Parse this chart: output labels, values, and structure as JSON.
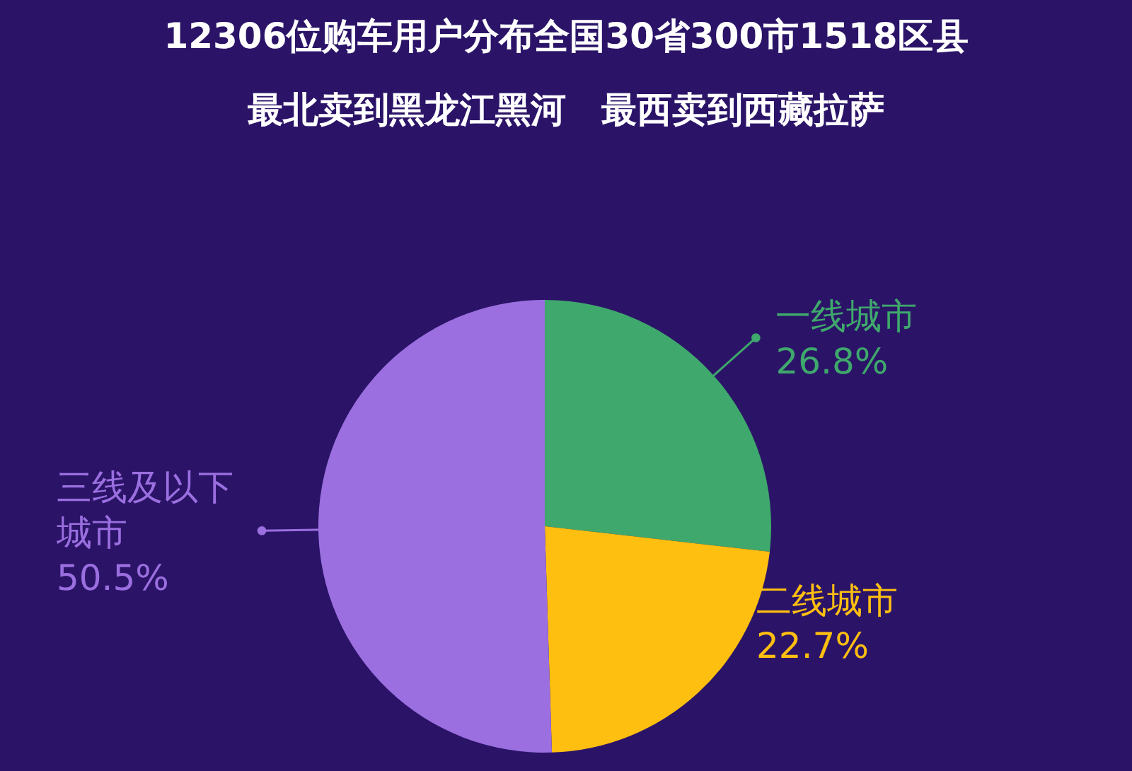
{
  "chart_data": {
    "type": "pie",
    "title": "12306位购车用户分布全国30省300市1518区县",
    "subtitle": "最北卖到黑龙江黑河　最西卖到西藏拉萨",
    "categories": [
      "一线城市",
      "二线城市",
      "三线及以下城市"
    ],
    "values": [
      26.8,
      22.7,
      50.5
    ],
    "value_labels": [
      "26.8%",
      "22.7%",
      "50.5%"
    ],
    "colors": [
      "#3fa86c",
      "#ffbf10",
      "#9b6fe0"
    ]
  }
}
